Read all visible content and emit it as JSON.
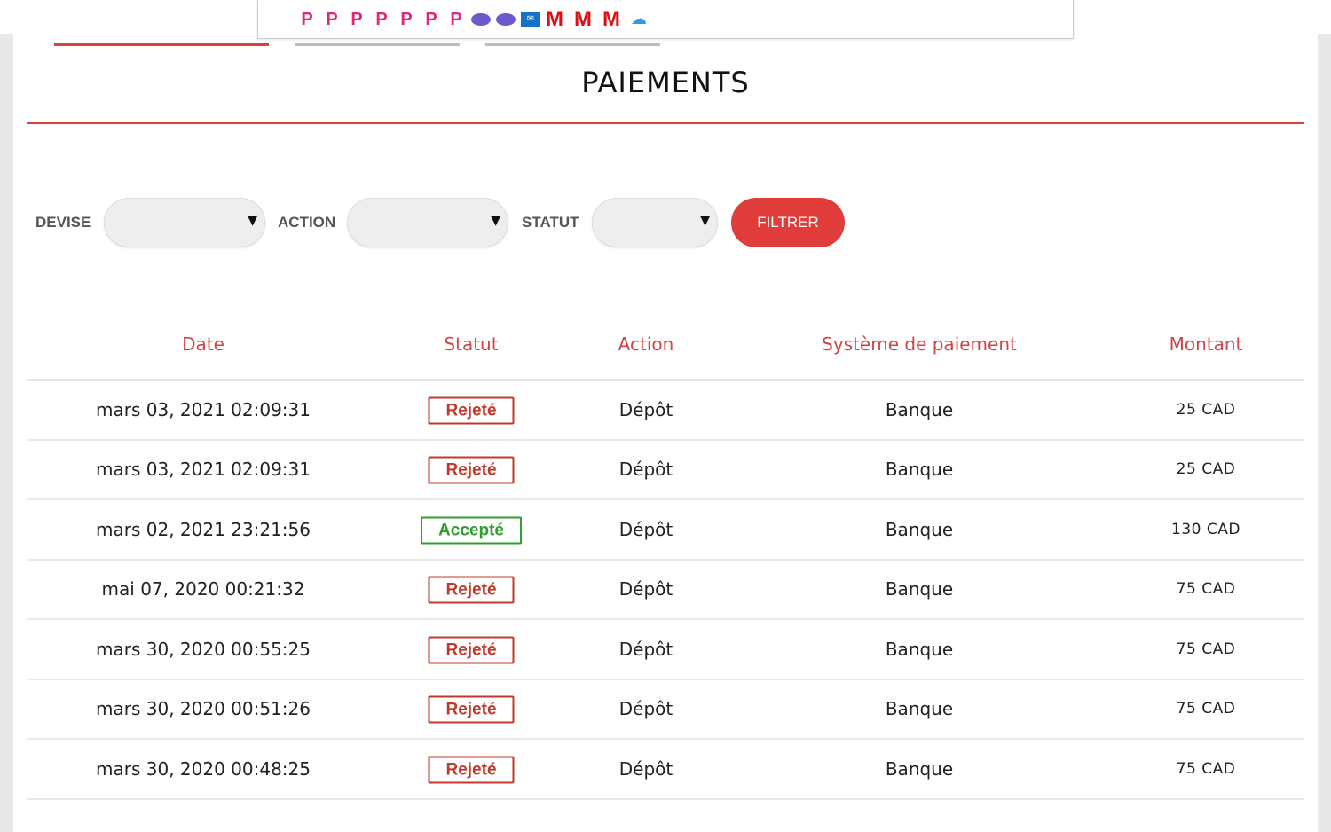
{
  "extensions": [
    {
      "icon": "p-icon",
      "glyph": "P"
    },
    {
      "icon": "p-icon",
      "glyph": "P"
    },
    {
      "icon": "p-icon",
      "glyph": "P"
    },
    {
      "icon": "p-icon",
      "glyph": "P"
    },
    {
      "icon": "p-icon",
      "glyph": "P"
    },
    {
      "icon": "p-icon",
      "glyph": "P"
    },
    {
      "icon": "p-icon",
      "glyph": "P"
    },
    {
      "icon": "planet-icon"
    },
    {
      "icon": "planet-icon"
    },
    {
      "icon": "outlook-icon"
    },
    {
      "icon": "m-icon",
      "glyph": "M"
    },
    {
      "icon": "m-icon",
      "glyph": "M"
    },
    {
      "icon": "m-icon",
      "glyph": "M"
    },
    {
      "icon": "cloud-icon"
    }
  ],
  "title": "PAIEMENTS",
  "filters": {
    "devise": "DEVISE",
    "action": "ACTION",
    "statut": "STATUT",
    "button": "FILTRER"
  },
  "colors": {
    "accent": "#e03c3c",
    "rejected": "#c0392b",
    "accepted": "#2e9e2e"
  },
  "columns": [
    "Date",
    "Statut",
    "Action",
    "Système de paiement",
    "Montant"
  ],
  "rows": [
    {
      "date": "mars 03, 2021 02:09:31",
      "status": "Rejeté",
      "action": "Dépôt",
      "system": "Banque",
      "amount": "25 CAD"
    },
    {
      "date": "mars 03, 2021 02:09:31",
      "status": "Rejeté",
      "action": "Dépôt",
      "system": "Banque",
      "amount": "25 CAD"
    },
    {
      "date": "mars 02, 2021 23:21:56",
      "status": "Accepté",
      "action": "Dépôt",
      "system": "Banque",
      "amount": "130 CAD"
    },
    {
      "date": "mai 07, 2020 00:21:32",
      "status": "Rejeté",
      "action": "Dépôt",
      "system": "Banque",
      "amount": "75 CAD"
    },
    {
      "date": "mars 30, 2020 00:55:25",
      "status": "Rejeté",
      "action": "Dépôt",
      "system": "Banque",
      "amount": "75 CAD"
    },
    {
      "date": "mars 30, 2020 00:51:26",
      "status": "Rejeté",
      "action": "Dépôt",
      "system": "Banque",
      "amount": "75 CAD"
    },
    {
      "date": "mars 30, 2020 00:48:25",
      "status": "Rejeté",
      "action": "Dépôt",
      "system": "Banque",
      "amount": "75 CAD"
    }
  ]
}
